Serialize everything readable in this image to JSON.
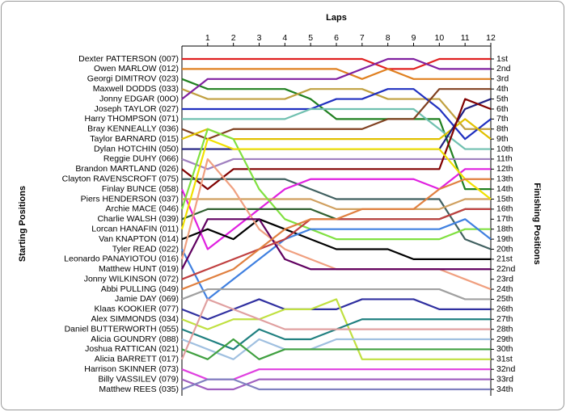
{
  "chart_data": {
    "type": "line",
    "title": "Laps",
    "y_label_left": "Starting Positions",
    "y_label_right": "Finishing Positions",
    "x": [
      0,
      1,
      2,
      3,
      4,
      5,
      6,
      7,
      8,
      9,
      10,
      11,
      12
    ],
    "xlim": [
      0,
      12
    ],
    "xticks": [
      1,
      2,
      3,
      4,
      5,
      6,
      7,
      8,
      9,
      10,
      11,
      12
    ],
    "ylim": [
      1,
      34
    ],
    "y_inverted": true,
    "yticks": [
      {
        "value": 1,
        "label": "1st"
      },
      {
        "value": 2,
        "label": "2nd"
      },
      {
        "value": 3,
        "label": "3rd"
      },
      {
        "value": 4,
        "label": "4th"
      },
      {
        "value": 5,
        "label": "5th"
      },
      {
        "value": 6,
        "label": "6th"
      },
      {
        "value": 7,
        "label": "7th"
      },
      {
        "value": 8,
        "label": "8th"
      },
      {
        "value": 9,
        "label": "9th"
      },
      {
        "value": 10,
        "label": "10th"
      },
      {
        "value": 11,
        "label": "11th"
      },
      {
        "value": 12,
        "label": "12th"
      },
      {
        "value": 13,
        "label": "13th"
      },
      {
        "value": 14,
        "label": "14th"
      },
      {
        "value": 15,
        "label": "15th"
      },
      {
        "value": 16,
        "label": "16th"
      },
      {
        "value": 17,
        "label": "17th"
      },
      {
        "value": 18,
        "label": "18th"
      },
      {
        "value": 19,
        "label": "19th"
      },
      {
        "value": 20,
        "label": "20th"
      },
      {
        "value": 21,
        "label": "21st"
      },
      {
        "value": 22,
        "label": "22nd"
      },
      {
        "value": 23,
        "label": "23rd"
      },
      {
        "value": 24,
        "label": "24th"
      },
      {
        "value": 25,
        "label": "25th"
      },
      {
        "value": 26,
        "label": "26th"
      },
      {
        "value": 27,
        "label": "27th"
      },
      {
        "value": 28,
        "label": "28th"
      },
      {
        "value": 29,
        "label": "29th"
      },
      {
        "value": 30,
        "label": "30th"
      },
      {
        "value": 31,
        "label": "31st"
      },
      {
        "value": 32,
        "label": "32nd"
      },
      {
        "value": 33,
        "label": "33rd"
      },
      {
        "value": 34,
        "label": "34th"
      }
    ],
    "series": [
      {
        "name": "Dexter PATTERSON (007)",
        "color": "#e02020",
        "values": [
          1,
          1,
          1,
          1,
          1,
          1,
          1,
          1,
          2,
          2,
          1,
          1,
          1
        ]
      },
      {
        "name": "Owen MARLOW (012)",
        "color": "#e08020",
        "values": [
          2,
          2,
          2,
          2,
          2,
          2,
          2,
          3,
          2,
          3,
          3,
          3,
          3
        ]
      },
      {
        "name": "Georgi DIMITROV (023)",
        "color": "#208020",
        "values": [
          3,
          4,
          4,
          4,
          4,
          5,
          7,
          7,
          7,
          7,
          7,
          14,
          14
        ]
      },
      {
        "name": "Maxwell DODDS (033)",
        "color": "#c0a040",
        "values": [
          4,
          5,
          5,
          5,
          5,
          4,
          4,
          4,
          5,
          5,
          5,
          8,
          8
        ]
      },
      {
        "name": "Jonny EDGAR (00O)",
        "color": "#8020a0",
        "values": [
          5,
          3,
          3,
          3,
          3,
          3,
          3,
          2,
          1,
          1,
          2,
          2,
          2
        ]
      },
      {
        "name": "Joseph TAYLOR (027)",
        "color": "#2030c0",
        "values": [
          6,
          6,
          6,
          6,
          6,
          6,
          5,
          5,
          4,
          4,
          6,
          9,
          7
        ]
      },
      {
        "name": "Harry THOMPSON (071)",
        "color": "#70c0b0",
        "values": [
          7,
          7,
          7,
          7,
          7,
          6,
          6,
          6,
          6,
          6,
          8,
          10,
          10
        ]
      },
      {
        "name": "Bray KENNEALLY (036)",
        "color": "#804020",
        "values": [
          8,
          9,
          8,
          8,
          8,
          8,
          8,
          8,
          7,
          7,
          4,
          4,
          4
        ]
      },
      {
        "name": "Taylor BARNARD (015)",
        "color": "#e0c000",
        "values": [
          9,
          8,
          9,
          9,
          9,
          9,
          9,
          9,
          9,
          9,
          9,
          7,
          9
        ]
      },
      {
        "name": "Dylan HOTCHIN (050)",
        "color": "#202080",
        "values": [
          10,
          10,
          10,
          10,
          10,
          10,
          10,
          10,
          10,
          10,
          10,
          6,
          5
        ]
      },
      {
        "name": "Reggie DUHY (066)",
        "color": "#a080c0",
        "values": [
          11,
          12,
          11,
          11,
          11,
          11,
          11,
          11,
          11,
          11,
          11,
          11,
          11
        ]
      },
      {
        "name": "Brandon MARTLAND (026)",
        "color": "#800000",
        "values": [
          12,
          14,
          12,
          12,
          12,
          12,
          12,
          12,
          12,
          12,
          12,
          5,
          6
        ]
      },
      {
        "name": "Clayton RAVENSCROFT (075)",
        "color": "#406060",
        "values": [
          13,
          13,
          13,
          13,
          13,
          14,
          15,
          15,
          15,
          15,
          15,
          19,
          20
        ]
      },
      {
        "name": "Finlay BUNCE (058)",
        "color": "#e020e0",
        "values": [
          14,
          20,
          18,
          16,
          14,
          13,
          13,
          13,
          13,
          13,
          14,
          12,
          12
        ]
      },
      {
        "name": "Piers HENDERSON (037)",
        "color": "#d0a060",
        "values": [
          15,
          15,
          15,
          15,
          15,
          15,
          16,
          16,
          16,
          16,
          16,
          15,
          15
        ]
      },
      {
        "name": "Archie MACE (046)",
        "color": "#80e040",
        "values": [
          16,
          8,
          9,
          14,
          17,
          18,
          19,
          19,
          19,
          19,
          19,
          18,
          18
        ]
      },
      {
        "name": "Charlie WALSH (039)",
        "color": "#306030",
        "values": [
          17,
          16,
          16,
          16,
          16,
          16,
          17,
          17,
          17,
          17,
          17,
          16,
          16
        ]
      },
      {
        "name": "Lorcan HANAFIN (011)",
        "color": "#f0e000",
        "values": [
          18,
          9,
          10,
          10,
          10,
          10,
          10,
          10,
          10,
          10,
          10,
          13,
          15
        ]
      },
      {
        "name": "Van KNAPTON (014)",
        "color": "#000000",
        "values": [
          19,
          18,
          19,
          17,
          18,
          19,
          20,
          20,
          20,
          21,
          21,
          21,
          21
        ]
      },
      {
        "name": "Tyler READ (022)",
        "color": "#4080e0",
        "values": [
          20,
          25,
          23,
          21,
          19,
          18,
          18,
          18,
          18,
          18,
          18,
          17,
          19
        ]
      },
      {
        "name": "Leonardo PANAYIOTOU (016)",
        "color": "#f0a080",
        "values": [
          21,
          11,
          14,
          18,
          20,
          21,
          22,
          22,
          22,
          22,
          22,
          23,
          24
        ]
      },
      {
        "name": "Matthew HUNT (019)",
        "color": "#600060",
        "values": [
          22,
          17,
          17,
          17,
          21,
          22,
          22,
          22,
          22,
          22,
          22,
          22,
          22
        ]
      },
      {
        "name": "Jonny WILKINSON (072)",
        "color": "#c04040",
        "values": [
          23,
          22,
          21,
          20,
          19,
          17,
          17,
          17,
          17,
          17,
          17,
          16,
          16
        ]
      },
      {
        "name": "Abbi PULLING (049)",
        "color": "#e08040",
        "values": [
          24,
          23,
          22,
          20,
          18,
          17,
          17,
          16,
          16,
          16,
          14,
          13,
          13
        ]
      },
      {
        "name": "Jamie DAY (069)",
        "color": "#a0a0a0",
        "values": [
          25,
          24,
          24,
          24,
          24,
          24,
          24,
          24,
          24,
          24,
          24,
          25,
          25
        ]
      },
      {
        "name": "Klaas KOOKIER (077)",
        "color": "#3030a0",
        "values": [
          26,
          27,
          26,
          25,
          26,
          26,
          26,
          25,
          25,
          25,
          26,
          26,
          26
        ]
      },
      {
        "name": "Alex SIMMONDS (034)",
        "color": "#c0e040",
        "values": [
          27,
          28,
          27,
          27,
          26,
          26,
          25,
          31,
          31,
          31,
          31,
          31,
          31
        ]
      },
      {
        "name": "Daniel BUTTERWORTH (055)",
        "color": "#208080",
        "values": [
          28,
          29,
          30,
          28,
          29,
          29,
          28,
          27,
          27,
          27,
          27,
          27,
          27
        ]
      },
      {
        "name": "Alicia GOUNDRY (088)",
        "color": "#a0c0e0",
        "values": [
          29,
          30,
          31,
          29,
          30,
          30,
          29,
          29,
          29,
          29,
          29,
          29,
          29
        ]
      },
      {
        "name": "Joshua RATTICAN (021)",
        "color": "#40a040",
        "values": [
          30,
          31,
          29,
          31,
          30,
          30,
          30,
          30,
          30,
          30,
          30,
          30,
          30
        ]
      },
      {
        "name": "Alicia BARRETT (017)",
        "color": "#e0a0a0",
        "values": [
          31,
          25,
          26,
          27,
          28,
          28,
          28,
          28,
          28,
          28,
          28,
          28,
          28
        ]
      },
      {
        "name": "Harrison SKINNER (073)",
        "color": "#e040e0",
        "values": [
          32,
          33,
          33,
          32,
          32,
          32,
          32,
          32,
          32,
          32,
          32,
          32,
          32
        ]
      },
      {
        "name": "Billy VASSILEV (079)",
        "color": "#a060c0",
        "values": [
          33,
          34,
          34,
          33,
          33,
          33,
          33,
          33,
          33,
          33,
          33,
          33,
          33
        ]
      },
      {
        "name": "Matthew REES (035)",
        "color": "#8080c0",
        "values": [
          34,
          33,
          33,
          34,
          34,
          34,
          34,
          34,
          34,
          34,
          34,
          34,
          34
        ]
      }
    ]
  }
}
